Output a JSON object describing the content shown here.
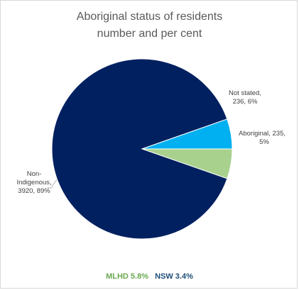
{
  "chart_data": {
    "type": "pie",
    "title": [
      "Aboriginal status of residents",
      "number and per cent"
    ],
    "slices": [
      {
        "label": "Aboriginal",
        "value": 235,
        "percent": 5,
        "color": "#a9d18e",
        "text": [
          "Aboriginal, 235,",
          "5%"
        ]
      },
      {
        "label": "Non-Indigenous",
        "value": 3920,
        "percent": 89,
        "color": "#002060",
        "text": [
          "Non-",
          "Indigenous,",
          "3920, 89%"
        ]
      },
      {
        "label": "Not stated",
        "value": 236,
        "percent": 6,
        "color": "#00b0f0",
        "text": [
          "Not stated,",
          "236, 6%"
        ]
      }
    ],
    "footer": {
      "mlhd": "MLHD 5.8%",
      "nsw": "NSW 3.4%"
    },
    "colors": {
      "title": "#595959",
      "label": "#404040",
      "mlhd": "#6aa84f",
      "nsw": "#1f4e79"
    }
  }
}
